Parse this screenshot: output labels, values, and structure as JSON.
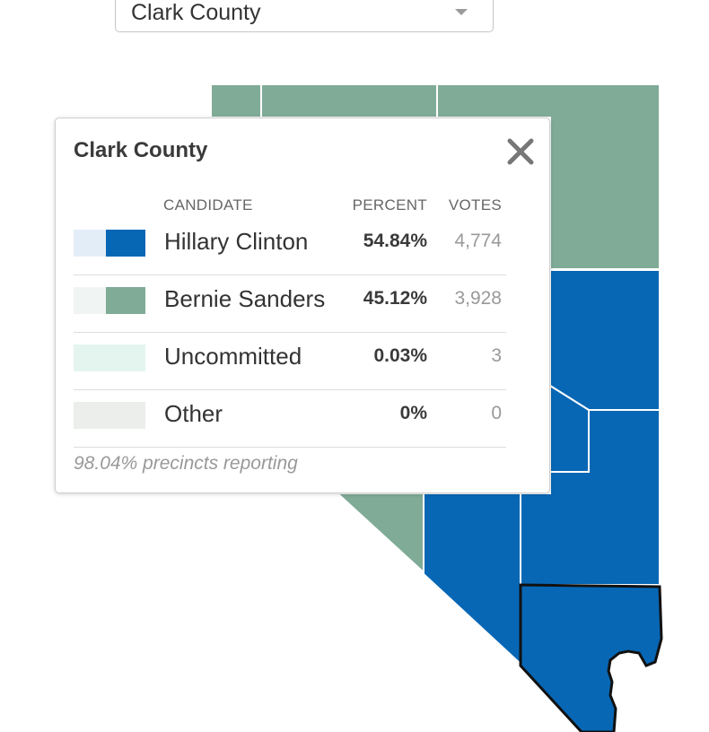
{
  "county_selector": {
    "selected": "Clark County"
  },
  "map": {
    "colors": {
      "clinton": "#0767b5",
      "sanders": "#7fab97",
      "border": "#ffffff",
      "highlight": "#111111"
    },
    "highlighted_county": "Clark County"
  },
  "popup": {
    "title": "Clark County",
    "headers": {
      "candidate": "CANDIDATE",
      "percent": "PERCENT",
      "votes": "VOTES"
    },
    "rows": [
      {
        "name": "Hillary Clinton",
        "percent": "54.84%",
        "votes": "4,774",
        "light_color": "#e3edf8",
        "dark_color": "#0767b5",
        "has_dark": true
      },
      {
        "name": "Bernie Sanders",
        "percent": "45.12%",
        "votes": "3,928",
        "light_color": "#f0f4f2",
        "dark_color": "#7fab97",
        "has_dark": true
      },
      {
        "name": "Uncommitted",
        "percent": "0.03%",
        "votes": "3",
        "light_color": "#e4f5ef",
        "dark_color": "#e4f5ef",
        "has_dark": false
      },
      {
        "name": "Other",
        "percent": "0%",
        "votes": "0",
        "light_color": "#ebeeea",
        "dark_color": "#ebeeea",
        "has_dark": false
      }
    ],
    "precincts_reporting": "98.04% precincts reporting",
    "close_icon": "close-icon"
  }
}
